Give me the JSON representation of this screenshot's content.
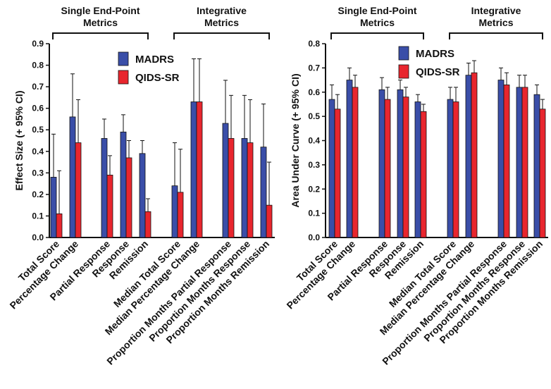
{
  "colors": {
    "madrs": "#3a4ea8",
    "qids": "#e8262e",
    "axis": "#111111"
  },
  "chart_data": [
    {
      "type": "bar",
      "ylabel": "Effect Size (+ 95% CI)",
      "ylim": [
        0,
        0.9
      ],
      "yticks": [
        0,
        0.1,
        0.2,
        0.3,
        0.4,
        0.5,
        0.6,
        0.7,
        0.8,
        0.9
      ],
      "tick_labels": [
        "0.0",
        "0.1",
        "0.2",
        "0.3",
        "0.4",
        "0.5",
        "0.6",
        "0.7",
        "0.8",
        "0.9"
      ],
      "groups": [
        {
          "label_lines": [
            "Single End-Point",
            "Metrics"
          ],
          "categories": [
            0,
            4
          ]
        },
        {
          "label_lines": [
            "Integrative",
            "Metrics"
          ],
          "categories": [
            5,
            9
          ]
        }
      ],
      "categories": [
        "Total Score",
        "Percentage Change",
        "Partial Response",
        "Response",
        "Remission",
        "Median Total Score",
        "Median Percentage Change",
        "Proportion Months Partial Response",
        "Proportion Months Response",
        "Proportion Months Remission"
      ],
      "series": [
        {
          "name": "MADRS",
          "values": [
            0.28,
            0.56,
            0.46,
            0.49,
            0.39,
            0.24,
            0.63,
            0.53,
            0.46,
            0.42
          ],
          "ci_upper": [
            0.48,
            0.76,
            0.55,
            0.57,
            0.45,
            0.44,
            0.83,
            0.73,
            0.66,
            0.62
          ]
        },
        {
          "name": "QIDS-SR",
          "values": [
            0.11,
            0.44,
            0.29,
            0.37,
            0.12,
            0.21,
            0.63,
            0.46,
            0.44,
            0.15
          ],
          "ci_upper": [
            0.31,
            0.64,
            0.38,
            0.45,
            0.18,
            0.41,
            0.83,
            0.66,
            0.64,
            0.35
          ]
        }
      ],
      "legend": "top-center"
    },
    {
      "type": "bar",
      "ylabel": "Area Under Curve (+ 95% CI)",
      "ylim": [
        0,
        0.8
      ],
      "yticks": [
        0,
        0.1,
        0.2,
        0.3,
        0.4,
        0.5,
        0.6,
        0.7,
        0.8
      ],
      "tick_labels": [
        "0.0",
        "0.1",
        "0.2",
        "0.3",
        "0.4",
        "0.5",
        "0.6",
        "0.7",
        "0.8"
      ],
      "groups": [
        {
          "label_lines": [
            "Single End-Point",
            "Metrics"
          ],
          "categories": [
            0,
            4
          ]
        },
        {
          "label_lines": [
            "Integrative",
            "Metrics"
          ],
          "categories": [
            5,
            9
          ]
        }
      ],
      "categories": [
        "Total Score",
        "Percentage Change",
        "Partial Response",
        "Response",
        "Remission",
        "Median Total Score",
        "Median Percentage Change",
        "Proportion Months Partial Response",
        "Proportion Months Response",
        "Proportion Months Remission"
      ],
      "series": [
        {
          "name": "MADRS",
          "values": [
            0.57,
            0.65,
            0.61,
            0.61,
            0.56,
            0.57,
            0.67,
            0.65,
            0.62,
            0.59
          ],
          "ci_upper": [
            0.63,
            0.7,
            0.66,
            0.65,
            0.59,
            0.62,
            0.72,
            0.7,
            0.67,
            0.63
          ]
        },
        {
          "name": "QIDS-SR",
          "values": [
            0.53,
            0.62,
            0.57,
            0.58,
            0.52,
            0.56,
            0.68,
            0.63,
            0.62,
            0.53
          ],
          "ci_upper": [
            0.59,
            0.67,
            0.62,
            0.62,
            0.55,
            0.62,
            0.73,
            0.68,
            0.67,
            0.57
          ]
        }
      ],
      "legend": "top-center"
    }
  ]
}
